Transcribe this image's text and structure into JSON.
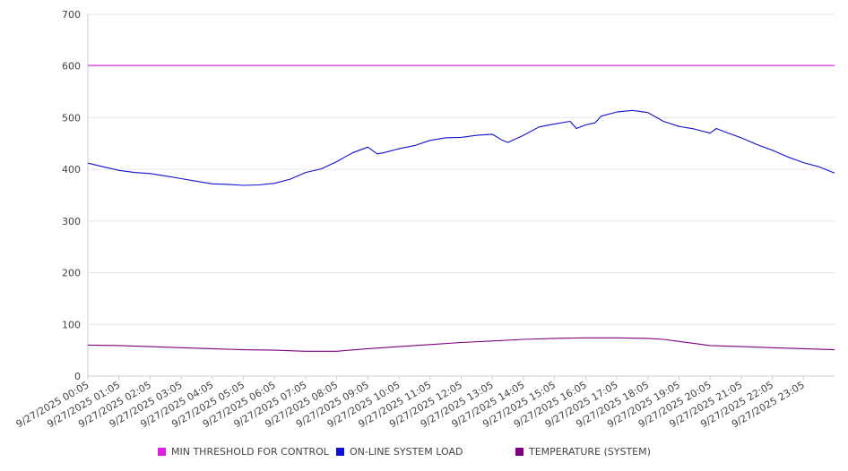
{
  "chart_data": {
    "type": "line",
    "ylim": [
      0,
      700
    ],
    "yticks": [
      "0",
      "100",
      "200",
      "300",
      "400",
      "500",
      "600",
      "700"
    ],
    "xlabels": [
      "9/27/2025 00:05",
      "9/27/2025 01:05",
      "9/27/2025 02:05",
      "9/27/2025 03:05",
      "9/27/2025 04:05",
      "9/27/2025 05:05",
      "9/27/2025 06:05",
      "9/27/2025 07:05",
      "9/27/2025 08:05",
      "9/27/2025 09:05",
      "9/27/2025 10:05",
      "9/27/2025 11:05",
      "9/27/2025 12:05",
      "9/27/2025 13:05",
      "9/27/2025 14:05",
      "9/27/2025 15:05",
      "9/27/2025 16:05",
      "9/27/2025 17:05",
      "9/27/2025 18:05",
      "9/27/2025 19:05",
      "9/27/2025 20:05",
      "9/27/2025 21:05",
      "9/27/2025 22:05",
      "9/27/2025 23:05"
    ],
    "grid": true,
    "legend_position": "bottom",
    "series": [
      {
        "name": "MIN THRESHOLD FOR CONTROL",
        "color": "#e020e0",
        "x": [
          0,
          24
        ],
        "y": [
          601,
          601
        ]
      },
      {
        "name": "ON-LINE SYSTEM LOAD",
        "color": "#1010d0",
        "x": [
          0,
          0.5,
          1,
          1.5,
          2,
          2.5,
          3,
          3.5,
          4,
          4.5,
          5,
          5.5,
          6,
          6.5,
          7,
          7.5,
          8,
          8.5,
          9,
          9.3,
          9.5,
          10,
          10.5,
          11,
          11.5,
          12,
          12.5,
          13,
          13.3,
          13.5,
          14,
          14.5,
          15,
          15.5,
          15.7,
          16,
          16.3,
          16.5,
          17,
          17.5,
          18,
          18.5,
          19,
          19.5,
          20,
          20.2,
          20.5,
          21,
          21.5,
          22,
          22.5,
          23,
          23.5,
          24
        ],
        "y": [
          412,
          405,
          398,
          394,
          392,
          387,
          382,
          377,
          372,
          371,
          369,
          370,
          373,
          381,
          394,
          401,
          415,
          432,
          443,
          430,
          432,
          440,
          446,
          456,
          461,
          462,
          466,
          468,
          457,
          452,
          466,
          482,
          488,
          493,
          479,
          486,
          490,
          503,
          511,
          514,
          510,
          493,
          483,
          478,
          470,
          479,
          472,
          461,
          448,
          437,
          424,
          413,
          405,
          393
        ]
      },
      {
        "name": "TEMPERATURE (SYSTEM)",
        "color": "#800080",
        "x": [
          0,
          1,
          2,
          3,
          4,
          5,
          6,
          7,
          8,
          9,
          10,
          11,
          12,
          13,
          14,
          15,
          16,
          17,
          18,
          18.5,
          19,
          19.5,
          20,
          21,
          22,
          23,
          24
        ],
        "y": [
          60,
          59,
          57,
          55,
          53,
          51,
          50,
          48,
          48,
          53,
          57,
          61,
          65,
          68,
          71,
          73,
          74,
          74,
          73,
          71,
          67,
          63,
          59,
          57,
          55,
          53,
          51
        ]
      }
    ]
  }
}
